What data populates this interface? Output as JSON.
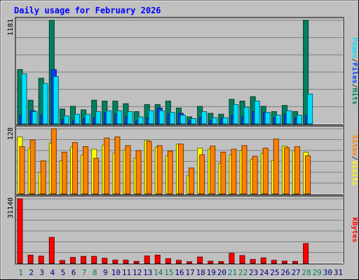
{
  "title": "Daily usage for February 2026",
  "chart_data": [
    {
      "type": "bar",
      "name": "hits-files-pages",
      "ymax_label": "1181",
      "ylim": [
        0,
        1181
      ],
      "legend": [
        "Pages",
        "/",
        "Files",
        "/",
        "Hits"
      ],
      "legend_colors": [
        "#00e0ff",
        "#404040",
        "#0040ff",
        "#404040",
        "#008060"
      ],
      "series": [
        {
          "name": "Hits",
          "color": "#008060",
          "values": [
            620,
            270,
            520,
            1181,
            170,
            200,
            160,
            270,
            260,
            260,
            230,
            140,
            220,
            220,
            260,
            180,
            80,
            200,
            120,
            110,
            280,
            260,
            310,
            200,
            140,
            210,
            140,
            1181
          ]
        },
        {
          "name": "Files",
          "color": "#0040ff",
          "values": [
            100,
            150,
            100,
            620,
            50,
            40,
            60,
            70,
            130,
            110,
            80,
            40,
            70,
            180,
            110,
            120,
            40,
            70,
            40,
            60,
            100,
            80,
            140,
            130,
            70,
            110,
            70,
            100
          ]
        },
        {
          "name": "Pages",
          "color": "#00e0ff",
          "values": [
            570,
            140,
            460,
            540,
            90,
            110,
            110,
            140,
            150,
            150,
            140,
            80,
            150,
            150,
            130,
            100,
            60,
            140,
            70,
            70,
            220,
            190,
            260,
            130,
            100,
            150,
            100,
            340
          ]
        }
      ]
    },
    {
      "type": "bar",
      "name": "visits-sites",
      "ymax_label": "128",
      "ylim": [
        0,
        128
      ],
      "legend": [
        "Sites",
        "/",
        "Visits"
      ],
      "legend_colors": [
        "#ff8000",
        "#404040",
        "#ffff00"
      ],
      "series": [
        {
          "name": "Visits",
          "color": "#ffff00",
          "values": [
            112,
            90,
            42,
            100,
            65,
            92,
            76,
            88,
            96,
            80,
            86,
            70,
            105,
            92,
            75,
            98,
            36,
            90,
            88,
            60,
            77,
            85,
            68,
            80,
            66,
            94,
            85,
            82
          ]
        },
        {
          "name": "Sites",
          "color": "#ff8000",
          "values": [
            93,
            106,
            65,
            128,
            82,
            101,
            93,
            70,
            110,
            112,
            95,
            85,
            103,
            95,
            84,
            98,
            51,
            77,
            94,
            82,
            88,
            95,
            74,
            90,
            108,
            91,
            93,
            75
          ]
        }
      ]
    },
    {
      "type": "bar",
      "name": "kbytes",
      "ymax_label": "31140",
      "ylim": [
        0,
        31140
      ],
      "legend": [
        "KBytes"
      ],
      "legend_colors": [
        "#ff0000"
      ],
      "series": [
        {
          "name": "KBytes",
          "color": "#ff0000",
          "values": [
            31140,
            3900,
            3400,
            12500,
            1300,
            2800,
            3300,
            3300,
            2400,
            1500,
            1500,
            900,
            3500,
            3900,
            2200,
            1400,
            700,
            3000,
            1000,
            800,
            4800,
            3700,
            1800,
            2600,
            1400,
            1000,
            900,
            9500
          ]
        }
      ]
    }
  ],
  "x_labels": [
    "1",
    "2",
    "3",
    "4",
    "5",
    "6",
    "7",
    "8",
    "9",
    "10",
    "11",
    "12",
    "13",
    "14",
    "15",
    "16",
    "17",
    "18",
    "19",
    "20",
    "21",
    "22",
    "23",
    "24",
    "25",
    "26",
    "27",
    "28",
    "29",
    "30",
    "31"
  ],
  "weekend_days": [
    1,
    7,
    8,
    14,
    15,
    21,
    22,
    28,
    29
  ],
  "colors": {
    "weekday": "#000080",
    "weekend": "#00805c",
    "title": "#0000ff"
  }
}
